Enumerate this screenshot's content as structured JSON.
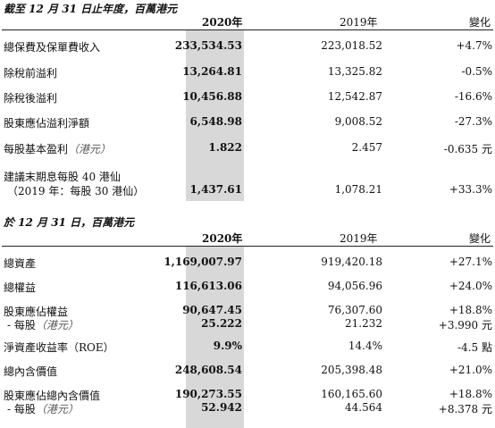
{
  "table1": {
    "title": "截至 12 月 31 日止年度，百萬港元",
    "headers": {
      "year2020": "2020年",
      "year2019": "2019年",
      "change": "變化"
    },
    "rows": [
      {
        "label": "總保費及保單費收入",
        "unit": "",
        "v2020": "233,534.53",
        "v2019": "223,018.52",
        "change": "+4.7%"
      },
      {
        "label": "除稅前溢利",
        "unit": "",
        "v2020": "13,264.81",
        "v2019": "13,325.82",
        "change": "-0.5%"
      },
      {
        "label": "除稅後溢利",
        "unit": "",
        "v2020": "10,456.88",
        "v2019": "12,542.87",
        "change": "-16.6%"
      },
      {
        "label": "股東應佔溢利淨額",
        "unit": "",
        "v2020": "6,548.98",
        "v2019": "9,008.52",
        "change": "-27.3%"
      },
      {
        "label": "每股基本盈利",
        "unit": "（港元）",
        "v2020": "1.822",
        "v2019": "2.457",
        "change": "-0.635 元"
      },
      {
        "label": "建議末期息每股 40 港仙",
        "label2": "（2019 年：每股 30 港仙）",
        "unit": "",
        "v2020": "1,437.61",
        "v2019": "1,078.21",
        "change": "+33.3%"
      }
    ]
  },
  "table2": {
    "title": "於 12 月 31 日，百萬港元",
    "headers": {
      "year2020": "2020年",
      "year2019": "2019年",
      "change": "變化"
    },
    "rows": [
      {
        "label": "總資產",
        "unit": "",
        "v2020": "1,169,007.97",
        "v2019": "919,420.18",
        "change": "+27.1%"
      },
      {
        "label": "總權益",
        "unit": "",
        "v2020": "116,613.06",
        "v2019": "94,056.96",
        "change": "+24.0%"
      },
      {
        "label": "股東應佔權益",
        "unit": "",
        "v2020": "90,647.45",
        "v2019": "76,307.60",
        "change": "+18.8%"
      },
      {
        "label": "- 每股",
        "unit": "（港元）",
        "v2020": "25.222",
        "v2019": "21.232",
        "change": "+3.990 元"
      },
      {
        "label": "淨資產收益率（ROE）",
        "unit": "",
        "v2020": "9.9%",
        "v2019": "14.4%",
        "change": "-4.5 點"
      },
      {
        "label": "總內含價值",
        "unit": "",
        "v2020": "248,608.54",
        "v2019": "205,398.48",
        "change": "+21.0%"
      },
      {
        "label": "股東應佔總內含價值",
        "unit": "",
        "v2020": "190,273.55",
        "v2019": "160,165.60",
        "change": "+18.8%"
      },
      {
        "label": "- 每股",
        "unit": "（港元）",
        "v2020": "52.942",
        "v2019": "44.564",
        "change": "+8.378 元"
      }
    ]
  },
  "colors": {
    "shade": "#d8d8d8",
    "rule": "#222222",
    "unit_text": "#555555"
  }
}
